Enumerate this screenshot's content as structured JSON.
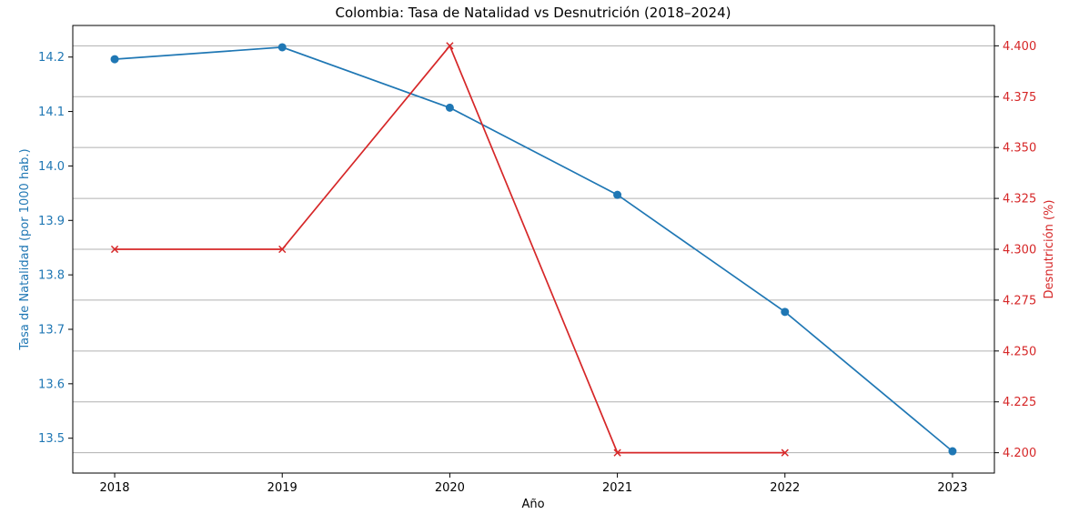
{
  "chart_data": {
    "type": "line",
    "title": "Colombia: Tasa de Natalidad vs Desnutrición (2018–2024)",
    "xlabel": "Año",
    "x_ticks": [
      "2018",
      "2019",
      "2020",
      "2021",
      "2022",
      "2023"
    ],
    "xlim": [
      2017.75,
      2023.25
    ],
    "grid": "horizontal lines at right-axis ticks",
    "colors": {
      "natalidad": "#1f77b4",
      "desnutricion": "#d62728",
      "grid": "#b0b0b0",
      "axis": "#000000"
    },
    "left_axis": {
      "label": "Tasa de Natalidad (por 1000 hab.)",
      "ylim": [
        13.436,
        14.258
      ],
      "ticks": [
        "13.5",
        "13.6",
        "13.7",
        "13.8",
        "13.9",
        "14.0",
        "14.1",
        "14.2"
      ],
      "tick_values": [
        13.5,
        13.6,
        13.7,
        13.8,
        13.9,
        14.0,
        14.1,
        14.2
      ]
    },
    "right_axis": {
      "label": "Desnutrición (%)",
      "ylim": [
        4.19,
        4.41
      ],
      "ticks": [
        "4.200",
        "4.225",
        "4.250",
        "4.275",
        "4.300",
        "4.325",
        "4.350",
        "4.375",
        "4.400"
      ],
      "tick_values": [
        4.2,
        4.225,
        4.25,
        4.275,
        4.3,
        4.325,
        4.35,
        4.375,
        4.4
      ]
    },
    "series": [
      {
        "axis": "left",
        "marker": "circle",
        "x": [
          2018,
          2019,
          2020,
          2021,
          2022,
          2023
        ],
        "values": [
          14.196,
          14.218,
          14.107,
          13.947,
          13.732,
          13.476
        ]
      },
      {
        "axis": "right",
        "marker": "x",
        "x": [
          2018,
          2019,
          2020,
          2021,
          2022
        ],
        "values": [
          4.3,
          4.3,
          4.4,
          4.2,
          4.2
        ]
      }
    ]
  }
}
